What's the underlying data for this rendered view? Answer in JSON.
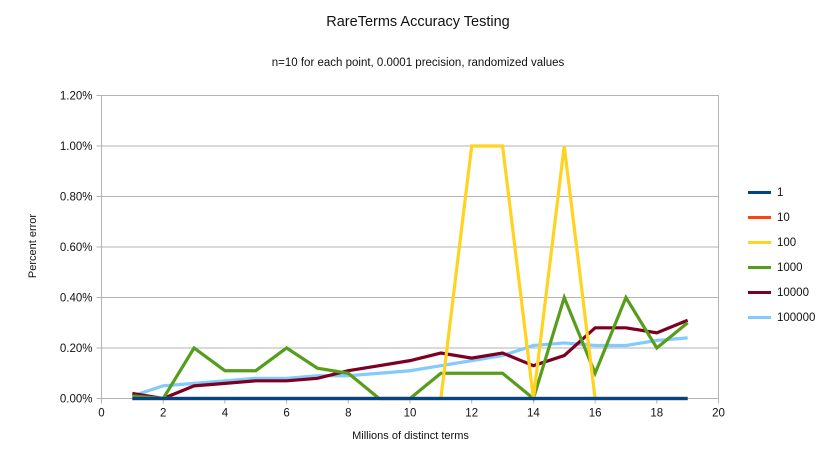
{
  "chart_data": {
    "type": "line",
    "title": "RareTerms Accuracy Testing",
    "subtitle": "n=10 for each point, 0.0001 precision, randomized values",
    "xlabel": "Millions of distinct terms",
    "ylabel": "Percent error",
    "xlim": [
      0,
      20
    ],
    "ylim": [
      0,
      1.2
    ],
    "x_ticks": [
      0,
      2,
      4,
      6,
      8,
      10,
      12,
      14,
      16,
      18,
      20
    ],
    "y_ticks": [
      0.0,
      0.2,
      0.4,
      0.6,
      0.8,
      1.0,
      1.2
    ],
    "y_tick_labels": [
      "0.00%",
      "0.20%",
      "0.40%",
      "0.60%",
      "0.80%",
      "1.00%",
      "1.20%"
    ],
    "grid": true,
    "legend_position": "right",
    "x": [
      1,
      2,
      3,
      4,
      5,
      6,
      7,
      8,
      9,
      10,
      11,
      12,
      13,
      14,
      15,
      16,
      17,
      18,
      19
    ],
    "series": [
      {
        "name": "1",
        "color": "#004586",
        "values": [
          0,
          0,
          0,
          0,
          0,
          0,
          0,
          0,
          0,
          0,
          0,
          0,
          0,
          0,
          0,
          0,
          0,
          0,
          0
        ]
      },
      {
        "name": "10",
        "color": "#FF420E",
        "values": [
          0,
          0,
          0,
          0,
          0,
          0,
          0,
          0,
          0,
          0,
          0,
          0,
          0,
          0,
          0,
          0,
          0,
          0,
          0
        ]
      },
      {
        "name": "100",
        "color": "#FFD320",
        "values": [
          0,
          0,
          0,
          0,
          0,
          0,
          0,
          0,
          0,
          0,
          0,
          1.0,
          1.0,
          0,
          1.0,
          0,
          0,
          0,
          0
        ]
      },
      {
        "name": "1000",
        "color": "#579D1C",
        "values": [
          0.01,
          0,
          0.2,
          0.11,
          0.11,
          0.2,
          0.12,
          0.1,
          0,
          0,
          0.1,
          0.1,
          0.1,
          0,
          0.4,
          0.1,
          0.4,
          0.2,
          0.3
        ]
      },
      {
        "name": "10000",
        "color": "#7E0021",
        "values": [
          0.02,
          0,
          0.05,
          0.06,
          0.07,
          0.07,
          0.08,
          0.11,
          0.13,
          0.15,
          0.18,
          0.16,
          0.18,
          0.13,
          0.17,
          0.28,
          0.28,
          0.26,
          0.31
        ]
      },
      {
        "name": "100000",
        "color": "#83CAFF",
        "values": [
          0.01,
          0.05,
          0.06,
          0.07,
          0.08,
          0.08,
          0.09,
          0.09,
          0.1,
          0.11,
          0.13,
          0.15,
          0.17,
          0.21,
          0.22,
          0.21,
          0.21,
          0.23,
          0.24
        ]
      }
    ],
    "draw_order": [
      "100000",
      "10000",
      "1000",
      "100",
      "10",
      "1"
    ],
    "colors": {
      "gridline": "#b3b3b3",
      "plot_border": "#b3b3b3",
      "tick": "#b3b3b3",
      "text": "#111111",
      "background": "#ffffff"
    }
  }
}
